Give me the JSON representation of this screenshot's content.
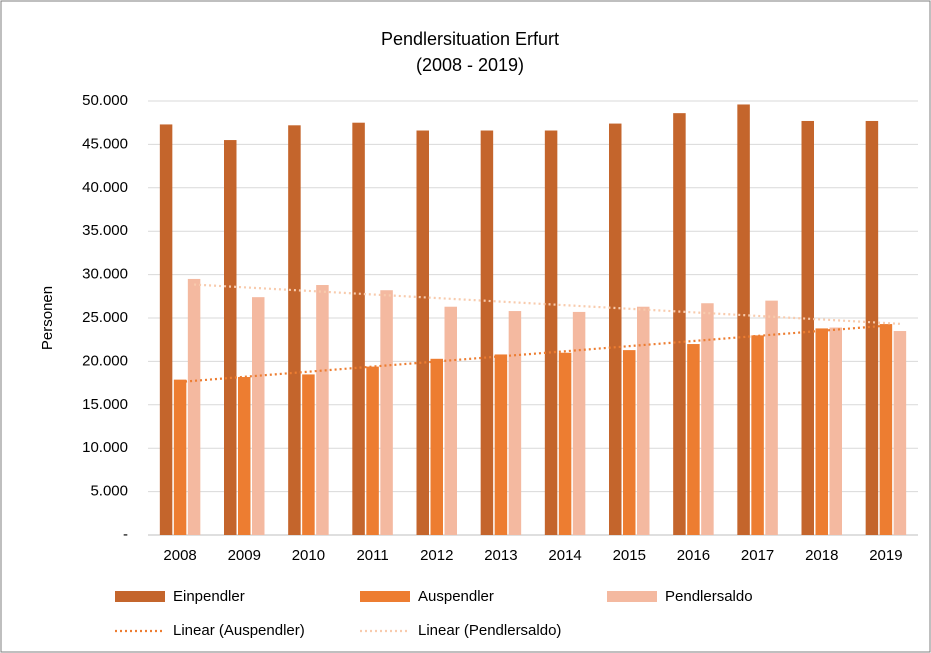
{
  "chart_data": {
    "type": "bar",
    "title": "Pendlersituation Erfurt",
    "subtitle": "(2008 - 2019)",
    "y_label": "Personen",
    "categories": [
      "2008",
      "2009",
      "2010",
      "2011",
      "2012",
      "2013",
      "2014",
      "2015",
      "2016",
      "2017",
      "2018",
      "2019"
    ],
    "series": [
      {
        "name": "Einpendler",
        "color": "#c4652c",
        "values": [
          47300,
          45500,
          47200,
          47500,
          46600,
          46600,
          46600,
          47400,
          48600,
          49600,
          47700,
          47700
        ]
      },
      {
        "name": "Auspendler",
        "color": "#ed7d31",
        "values": [
          17900,
          18200,
          18500,
          19400,
          20300,
          20800,
          21000,
          21300,
          22000,
          23000,
          23800,
          24300
        ]
      },
      {
        "name": "Pendlersaldo",
        "color": "#f4b9a0",
        "values": [
          29500,
          27400,
          28800,
          28200,
          26300,
          25800,
          25700,
          26300,
          26700,
          27000,
          23900,
          23500
        ]
      }
    ],
    "trendlines": [
      {
        "name": "Linear (Auspendler)",
        "series": 1,
        "color": "#ed7d31"
      },
      {
        "name": "Linear (Pendlersaldo)",
        "series": 2,
        "color": "#f8cbad"
      }
    ],
    "ylim": [
      0,
      50000
    ],
    "yticks": [
      {
        "value": 0,
        "label": "-"
      },
      {
        "value": 5000,
        "label": "5.000"
      },
      {
        "value": 10000,
        "label": "10.000"
      },
      {
        "value": 15000,
        "label": "15.000"
      },
      {
        "value": 20000,
        "label": "20.000"
      },
      {
        "value": 25000,
        "label": "25.000"
      },
      {
        "value": 30000,
        "label": "30.000"
      },
      {
        "value": 35000,
        "label": "35.000"
      },
      {
        "value": 40000,
        "label": "40.000"
      },
      {
        "value": 45000,
        "label": "45.000"
      },
      {
        "value": 50000,
        "label": "50.000"
      }
    ],
    "grid": true,
    "legend": "bottom"
  }
}
